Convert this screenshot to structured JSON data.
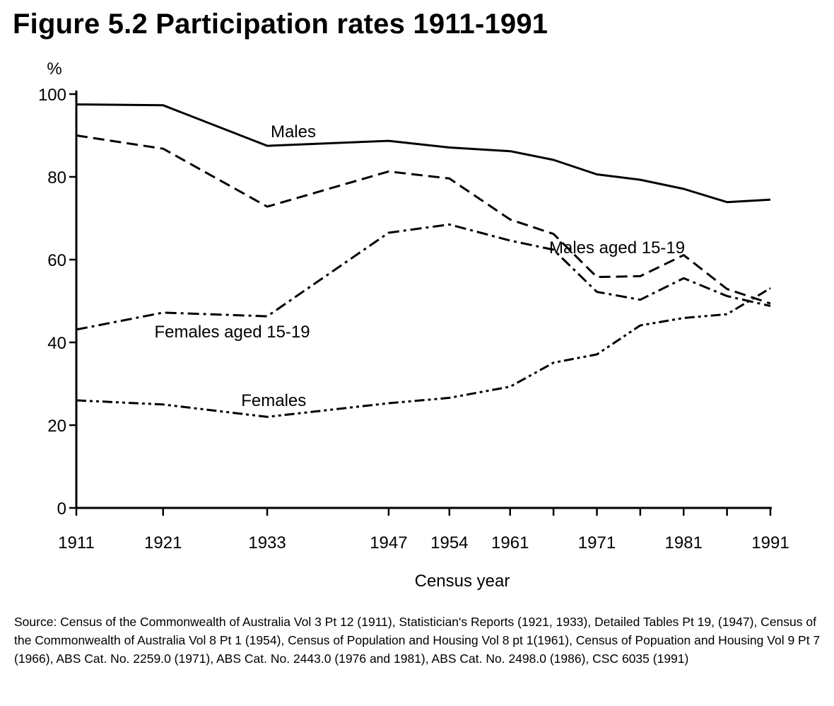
{
  "chart_data": {
    "type": "line",
    "title": "Figure 5.2  Participation rates 1911-1991",
    "ylabel": "%",
    "xlabel": "Census year",
    "ylim": [
      0,
      100
    ],
    "yticks": [
      0,
      20,
      40,
      60,
      80,
      100
    ],
    "xticks": [
      1911,
      1921,
      1933,
      1947,
      1954,
      1961,
      1971,
      1981,
      1991
    ],
    "minor_xticks": [
      1966,
      1976,
      1986
    ],
    "grid": false,
    "legend": "none",
    "series": [
      {
        "name": "Males",
        "style": "solid",
        "x": [
          1911,
          1921,
          1933,
          1947,
          1954,
          1961,
          1966,
          1971,
          1976,
          1981,
          1986,
          1991
        ],
        "y": [
          97.5,
          97.3,
          87.5,
          88.7,
          87.1,
          86.2,
          84.1,
          80.6,
          79.3,
          77.1,
          73.9,
          74.5
        ]
      },
      {
        "name": "Males aged 15-19",
        "style": "dashed",
        "x": [
          1911,
          1921,
          1933,
          1947,
          1954,
          1961,
          1966,
          1971,
          1976,
          1981,
          1986,
          1991
        ],
        "y": [
          90.0,
          86.8,
          72.8,
          81.3,
          79.6,
          69.7,
          66.2,
          55.8,
          56.0,
          61.1,
          52.9,
          49.4
        ]
      },
      {
        "name": "Females aged 15-19",
        "style": "dash-dot",
        "x": [
          1911,
          1921,
          1933,
          1947,
          1954,
          1961,
          1966,
          1971,
          1976,
          1981,
          1986,
          1991
        ],
        "y": [
          43.1,
          47.2,
          46.3,
          66.5,
          68.5,
          64.6,
          62.4,
          52.2,
          50.3,
          55.5,
          51.2,
          48.8
        ]
      },
      {
        "name": "Females",
        "style": "dash-dot-dot",
        "x": [
          1911,
          1921,
          1933,
          1947,
          1954,
          1961,
          1966,
          1971,
          1976,
          1981,
          1986,
          1991
        ],
        "y": [
          26.0,
          25.0,
          22.0,
          25.3,
          26.6,
          29.3,
          35.1,
          37.1,
          44.1,
          45.9,
          46.8,
          53.1
        ]
      }
    ],
    "annotations": [
      {
        "text": "Males",
        "x": 1933.4,
        "y": 89.6
      },
      {
        "text": "Males aged 15-19",
        "x": 1965.5,
        "y": 61.5
      },
      {
        "text": "Females aged 15-19",
        "x": 1920.0,
        "y": 41.2
      },
      {
        "text": "Females",
        "x": 1930.0,
        "y": 24.6
      }
    ]
  },
  "source_note": "Source:  Census of the Commonwealth of Australia Vol 3 Pt 12 (1911), Statistician's Reports (1921, 1933), Detailed Tables Pt 19, (1947), Census of the Commonwealth of Australia Vol 8 Pt 1 (1954), Census of Population and Housing Vol 8 pt 1(1961), Census of Popuation and Housing Vol 9 Pt 7 (1966), ABS Cat. No. 2259.0 (1971), ABS Cat. No. 2443.0 (1976 and 1981), ABS Cat. No. 2498.0 (1986), CSC 6035 (1991)"
}
